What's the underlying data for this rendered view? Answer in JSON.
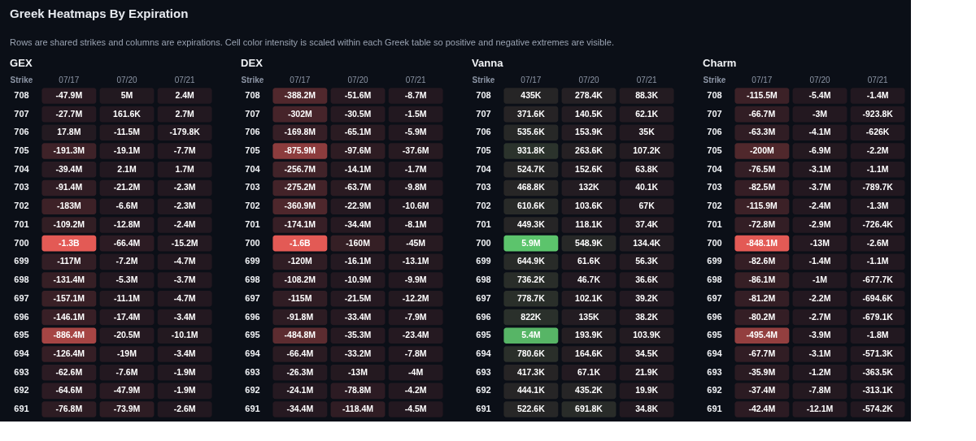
{
  "chart_data": [
    {
      "type": "other",
      "title": "Greek Heatmaps By Expiration",
      "subtitle": "Rows are shared strikes and columns are expirations. Cell color intensity is scaled within each Greek table so positive and negative extremes are visible."
    },
    {
      "type": "heatmap",
      "title": "GEX",
      "ylabel": "Strike",
      "categories": [
        "07/17",
        "07/20",
        "07/21"
      ],
      "y_categories": [
        "708",
        "707",
        "706",
        "705",
        "704",
        "703",
        "702",
        "701",
        "700",
        "699",
        "698",
        "697",
        "696",
        "695",
        "694",
        "693",
        "692",
        "691"
      ],
      "cells": [
        [
          -47900000,
          5000000,
          2400000
        ],
        [
          -27700000,
          161600,
          2700000
        ],
        [
          17800000,
          -11500000,
          -179800
        ],
        [
          -191300000,
          -19100000,
          -7700000
        ],
        [
          -39400000,
          2100000,
          1700000
        ],
        [
          -91400000,
          -21200000,
          -2300000
        ],
        [
          -183000000,
          -6600000,
          -2300000
        ],
        [
          -109200000,
          -12800000,
          -2400000
        ],
        [
          -1300000000,
          -66400000,
          -15200000
        ],
        [
          -117000000,
          -7200000,
          -4700000
        ],
        [
          -131400000,
          -5300000,
          -3700000
        ],
        [
          -157100000,
          -11100000,
          -4700000
        ],
        [
          -146100000,
          -17400000,
          -3400000
        ],
        [
          -886400000,
          -20500000,
          -10100000
        ],
        [
          -126400000,
          -19000000,
          -3400000
        ],
        [
          -62600000,
          -7600000,
          -1900000
        ],
        [
          -64600000,
          -47900000,
          -1900000
        ],
        [
          -76800000,
          -73900000,
          -2600000
        ]
      ],
      "cell_labels": [
        [
          "-47.9M",
          "5M",
          "2.4M"
        ],
        [
          "-27.7M",
          "161.6K",
          "2.7M"
        ],
        [
          "17.8M",
          "-11.5M",
          "-179.8K"
        ],
        [
          "-191.3M",
          "-19.1M",
          "-7.7M"
        ],
        [
          "-39.4M",
          "2.1M",
          "1.7M"
        ],
        [
          "-91.4M",
          "-21.2M",
          "-2.3M"
        ],
        [
          "-183M",
          "-6.6M",
          "-2.3M"
        ],
        [
          "-109.2M",
          "-12.8M",
          "-2.4M"
        ],
        [
          "-1.3B",
          "-66.4M",
          "-15.2M"
        ],
        [
          "-117M",
          "-7.2M",
          "-4.7M"
        ],
        [
          "-131.4M",
          "-5.3M",
          "-3.7M"
        ],
        [
          "-157.1M",
          "-11.1M",
          "-4.7M"
        ],
        [
          "-146.1M",
          "-17.4M",
          "-3.4M"
        ],
        [
          "-886.4M",
          "-20.5M",
          "-10.1M"
        ],
        [
          "-126.4M",
          "-19M",
          "-3.4M"
        ],
        [
          "-62.6M",
          "-7.6M",
          "-1.9M"
        ],
        [
          "-64.6M",
          "-47.9M",
          "-1.9M"
        ],
        [
          "-76.8M",
          "-73.9M",
          "-2.6M"
        ]
      ]
    },
    {
      "type": "heatmap",
      "title": "DEX",
      "ylabel": "Strike",
      "categories": [
        "07/17",
        "07/20",
        "07/21"
      ],
      "y_categories": [
        "708",
        "707",
        "706",
        "705",
        "704",
        "703",
        "702",
        "701",
        "700",
        "699",
        "698",
        "697",
        "696",
        "695",
        "694",
        "693",
        "692",
        "691"
      ],
      "cells": [
        [
          -388200000,
          -51600000,
          -8700000
        ],
        [
          -302000000,
          -30500000,
          -1500000
        ],
        [
          -169800000,
          -65100000,
          -5900000
        ],
        [
          -875900000,
          -97600000,
          -37600000
        ],
        [
          -256700000,
          -14100000,
          -1700000
        ],
        [
          -275200000,
          -63700000,
          -9800000
        ],
        [
          -360900000,
          -22900000,
          -10600000
        ],
        [
          -174100000,
          -34400000,
          -8100000
        ],
        [
          -1600000000,
          -160000000,
          -45000000
        ],
        [
          -120000000,
          -16100000,
          -13100000
        ],
        [
          -108200000,
          -10900000,
          -9900000
        ],
        [
          -115000000,
          -21500000,
          -12200000
        ],
        [
          -91800000,
          -33400000,
          -7900000
        ],
        [
          -484800000,
          -35300000,
          -23400000
        ],
        [
          -66400000,
          -33200000,
          -7800000
        ],
        [
          -26300000,
          -13000000,
          -4000000
        ],
        [
          -24100000,
          -78800000,
          -4200000
        ],
        [
          -34400000,
          -118400000,
          -4500000
        ]
      ],
      "cell_labels": [
        [
          "-388.2M",
          "-51.6M",
          "-8.7M"
        ],
        [
          "-302M",
          "-30.5M",
          "-1.5M"
        ],
        [
          "-169.8M",
          "-65.1M",
          "-5.9M"
        ],
        [
          "-875.9M",
          "-97.6M",
          "-37.6M"
        ],
        [
          "-256.7M",
          "-14.1M",
          "-1.7M"
        ],
        [
          "-275.2M",
          "-63.7M",
          "-9.8M"
        ],
        [
          "-360.9M",
          "-22.9M",
          "-10.6M"
        ],
        [
          "-174.1M",
          "-34.4M",
          "-8.1M"
        ],
        [
          "-1.6B",
          "-160M",
          "-45M"
        ],
        [
          "-120M",
          "-16.1M",
          "-13.1M"
        ],
        [
          "-108.2M",
          "-10.9M",
          "-9.9M"
        ],
        [
          "-115M",
          "-21.5M",
          "-12.2M"
        ],
        [
          "-91.8M",
          "-33.4M",
          "-7.9M"
        ],
        [
          "-484.8M",
          "-35.3M",
          "-23.4M"
        ],
        [
          "-66.4M",
          "-33.2M",
          "-7.8M"
        ],
        [
          "-26.3M",
          "-13M",
          "-4M"
        ],
        [
          "-24.1M",
          "-78.8M",
          "-4.2M"
        ],
        [
          "-34.4M",
          "-118.4M",
          "-4.5M"
        ]
      ]
    },
    {
      "type": "heatmap",
      "title": "Vanna",
      "ylabel": "Strike",
      "categories": [
        "07/17",
        "07/20",
        "07/21"
      ],
      "y_categories": [
        "708",
        "707",
        "706",
        "705",
        "704",
        "703",
        "702",
        "701",
        "700",
        "699",
        "698",
        "697",
        "696",
        "695",
        "694",
        "693",
        "692",
        "691"
      ],
      "cells": [
        [
          435000,
          278400,
          88300
        ],
        [
          371600,
          140500,
          62100
        ],
        [
          535600,
          153900,
          35000
        ],
        [
          931800,
          263600,
          107200
        ],
        [
          524700,
          152600,
          63800
        ],
        [
          468800,
          132000,
          40100
        ],
        [
          610600,
          103600,
          67000
        ],
        [
          449300,
          118100,
          37400
        ],
        [
          5900000,
          548900,
          134400
        ],
        [
          644900,
          61600,
          56300
        ],
        [
          736200,
          46700,
          36600
        ],
        [
          778700,
          102100,
          39200
        ],
        [
          822000,
          135000,
          38200
        ],
        [
          5400000,
          193900,
          103900
        ],
        [
          780600,
          164600,
          34500
        ],
        [
          417300,
          67100,
          21900
        ],
        [
          444100,
          435200,
          19900
        ],
        [
          522600,
          691800,
          34800
        ]
      ],
      "cell_labels": [
        [
          "435K",
          "278.4K",
          "88.3K"
        ],
        [
          "371.6K",
          "140.5K",
          "62.1K"
        ],
        [
          "535.6K",
          "153.9K",
          "35K"
        ],
        [
          "931.8K",
          "263.6K",
          "107.2K"
        ],
        [
          "524.7K",
          "152.6K",
          "63.8K"
        ],
        [
          "468.8K",
          "132K",
          "40.1K"
        ],
        [
          "610.6K",
          "103.6K",
          "67K"
        ],
        [
          "449.3K",
          "118.1K",
          "37.4K"
        ],
        [
          "5.9M",
          "548.9K",
          "134.4K"
        ],
        [
          "644.9K",
          "61.6K",
          "56.3K"
        ],
        [
          "736.2K",
          "46.7K",
          "36.6K"
        ],
        [
          "778.7K",
          "102.1K",
          "39.2K"
        ],
        [
          "822K",
          "135K",
          "38.2K"
        ],
        [
          "5.4M",
          "193.9K",
          "103.9K"
        ],
        [
          "780.6K",
          "164.6K",
          "34.5K"
        ],
        [
          "417.3K",
          "67.1K",
          "21.9K"
        ],
        [
          "444.1K",
          "435.2K",
          "19.9K"
        ],
        [
          "522.6K",
          "691.8K",
          "34.8K"
        ]
      ]
    },
    {
      "type": "heatmap",
      "title": "Charm",
      "ylabel": "Strike",
      "categories": [
        "07/17",
        "07/20",
        "07/21"
      ],
      "y_categories": [
        "708",
        "707",
        "706",
        "705",
        "704",
        "703",
        "702",
        "701",
        "700",
        "699",
        "698",
        "697",
        "696",
        "695",
        "694",
        "693",
        "692",
        "691"
      ],
      "cells": [
        [
          -115500000,
          -5400000,
          -1400000
        ],
        [
          -66700000,
          -3000000,
          -923800
        ],
        [
          -63300000,
          -4100000,
          -626000
        ],
        [
          -200000000,
          -6900000,
          -2200000
        ],
        [
          -76500000,
          -3100000,
          -1100000
        ],
        [
          -82500000,
          -3700000,
          -789700
        ],
        [
          -115900000,
          -2400000,
          -1300000
        ],
        [
          -72800000,
          -2900000,
          -726400
        ],
        [
          -848100000,
          -13000000,
          -2600000
        ],
        [
          -82600000,
          -1400000,
          -1100000
        ],
        [
          -86100000,
          -1000000,
          -677700
        ],
        [
          -81200000,
          -2200000,
          -694600
        ],
        [
          -80200000,
          -2700000,
          -679100
        ],
        [
          -495400000,
          -3900000,
          -1800000
        ],
        [
          -67700000,
          -3100000,
          -571300
        ],
        [
          -35900000,
          -1200000,
          -363500
        ],
        [
          -37400000,
          -7800000,
          -313100
        ],
        [
          -42400000,
          -12100000,
          -574200
        ]
      ],
      "cell_labels": [
        [
          "-115.5M",
          "-5.4M",
          "-1.4M"
        ],
        [
          "-66.7M",
          "-3M",
          "-923.8K"
        ],
        [
          "-63.3M",
          "-4.1M",
          "-626K"
        ],
        [
          "-200M",
          "-6.9M",
          "-2.2M"
        ],
        [
          "-76.5M",
          "-3.1M",
          "-1.1M"
        ],
        [
          "-82.5M",
          "-3.7M",
          "-789.7K"
        ],
        [
          "-115.9M",
          "-2.4M",
          "-1.3M"
        ],
        [
          "-72.8M",
          "-2.9M",
          "-726.4K"
        ],
        [
          "-848.1M",
          "-13M",
          "-2.6M"
        ],
        [
          "-82.6M",
          "-1.4M",
          "-1.1M"
        ],
        [
          "-86.1M",
          "-1M",
          "-677.7K"
        ],
        [
          "-81.2M",
          "-2.2M",
          "-694.6K"
        ],
        [
          "-80.2M",
          "-2.7M",
          "-679.1K"
        ],
        [
          "-495.4M",
          "-3.9M",
          "-1.8M"
        ],
        [
          "-67.7M",
          "-3.1M",
          "-571.3K"
        ],
        [
          "-35.9M",
          "-1.2M",
          "-363.5K"
        ],
        [
          "-37.4M",
          "-7.8M",
          "-313.1K"
        ],
        [
          "-42.4M",
          "-12.1M",
          "-574.2K"
        ]
      ]
    }
  ]
}
